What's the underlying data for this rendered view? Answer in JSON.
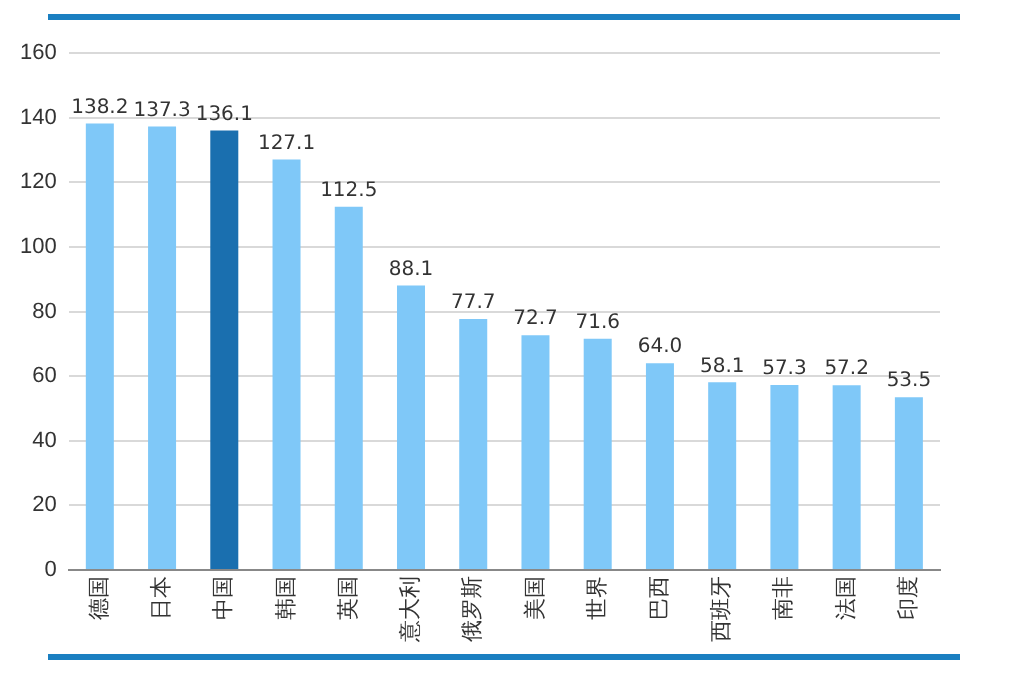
{
  "chart_data": {
    "type": "bar",
    "categories": [
      "德国",
      "日本",
      "中国",
      "韩国",
      "英国",
      "意大利",
      "俄罗斯",
      "美国",
      "世界",
      "巴西",
      "西班牙",
      "南非",
      "法国",
      "印度"
    ],
    "values": [
      138.2,
      137.3,
      136.1,
      127.1,
      112.5,
      88.1,
      77.7,
      72.7,
      71.6,
      64.0,
      58.1,
      57.3,
      57.2,
      53.5
    ],
    "value_labels": [
      "138.2",
      "137.3",
      "136.1",
      "127.1",
      "112.5",
      "88.1",
      "77.7",
      "72.7",
      "71.6",
      "64.0",
      "58.1",
      "57.3",
      "57.2",
      "53.5"
    ],
    "colors": [
      "#7fc8f8",
      "#7fc8f8",
      "#1a6faf",
      "#7fc8f8",
      "#7fc8f8",
      "#7fc8f8",
      "#7fc8f8",
      "#7fc8f8",
      "#7fc8f8",
      "#7fc8f8",
      "#7fc8f8",
      "#7fc8f8",
      "#7fc8f8",
      "#7fc8f8"
    ],
    "ylim": [
      0,
      160
    ],
    "yticks": [
      0,
      20,
      40,
      60,
      80,
      100,
      120,
      140,
      160
    ],
    "grid": "y",
    "legend": false
  }
}
